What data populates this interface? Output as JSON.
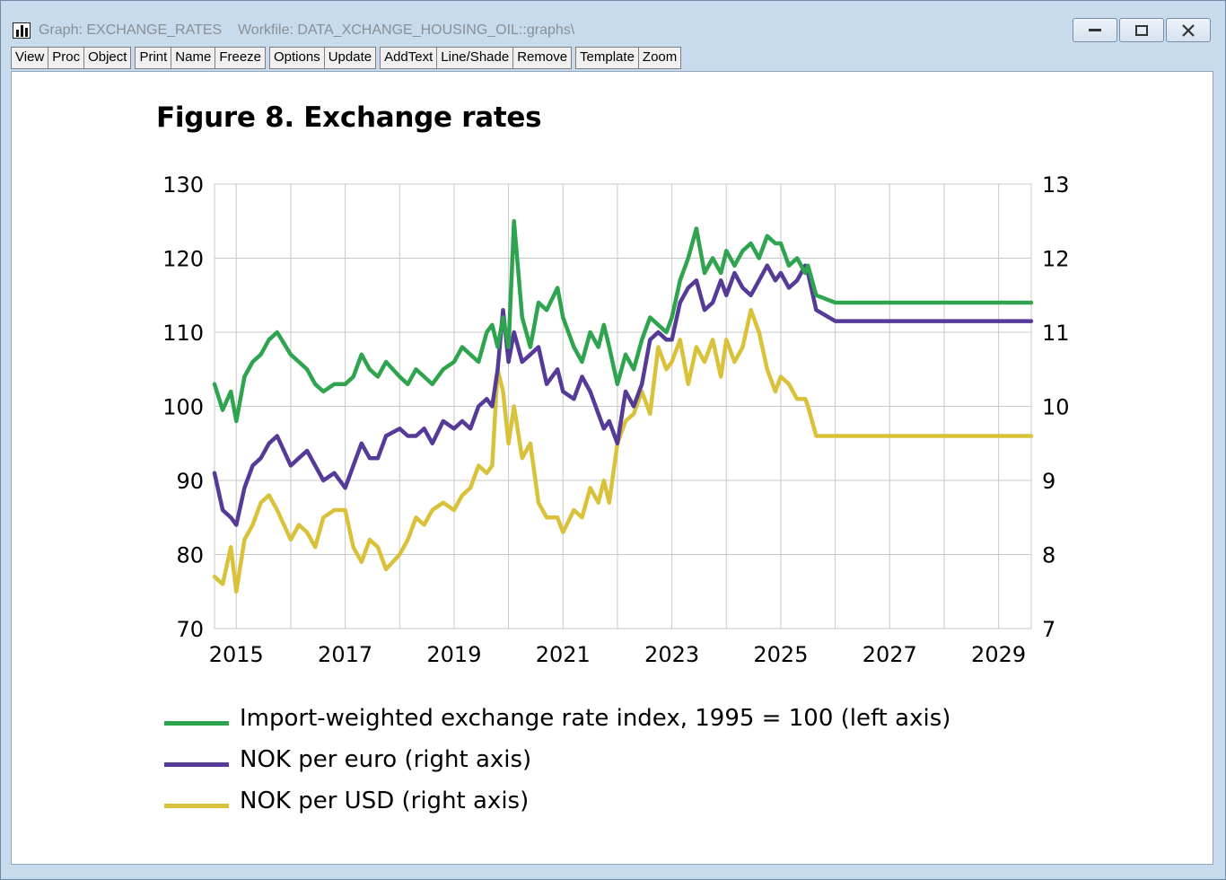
{
  "window": {
    "title": "Graph: EXCHANGE_RATES    Workfile: DATA_XCHANGE_HOUSING_OIL::graphs\\"
  },
  "toolbar": {
    "groups": [
      [
        "View",
        "Proc",
        "Object"
      ],
      [
        "Print",
        "Name",
        "Freeze"
      ],
      [
        "Options",
        "Update"
      ],
      [
        "AddText",
        "Line/Shade",
        "Remove"
      ],
      [
        "Template",
        "Zoom"
      ]
    ]
  },
  "figure": {
    "title": "Figure 8. Exchange rates"
  },
  "colors": {
    "green": "#2ea44f",
    "purple": "#553b97",
    "yellow": "#d9c23a",
    "grid": "#c8c8c8"
  },
  "chart_data": {
    "type": "line",
    "title": "Figure 8. Exchange rates",
    "xlabel": "",
    "ylabel": "",
    "xlim": [
      2014.6,
      2029.6
    ],
    "x_ticks": [
      "2015",
      "2017",
      "2019",
      "2021",
      "2023",
      "2025",
      "2027",
      "2029"
    ],
    "x_tick_values": [
      2015,
      2017,
      2019,
      2021,
      2023,
      2025,
      2027,
      2029
    ],
    "y_left": {
      "lim": [
        70,
        130
      ],
      "ticks": [
        "130",
        "120",
        "110",
        "100",
        "90",
        "80",
        "70"
      ]
    },
    "y_right": {
      "lim": [
        7,
        13
      ],
      "ticks": [
        "13",
        "12",
        "11",
        "10",
        "9",
        "8",
        "7"
      ]
    },
    "grid": true,
    "legend_position": "bottom",
    "series": [
      {
        "name": "Import-weighted exchange rate index, 1995 = 100 (left axis)",
        "axis": "left",
        "color": "#2ea44f",
        "x": [
          2014.6,
          2014.75,
          2014.9,
          2015.0,
          2015.15,
          2015.3,
          2015.45,
          2015.6,
          2015.75,
          2016.0,
          2016.15,
          2016.3,
          2016.45,
          2016.6,
          2016.8,
          2017.0,
          2017.15,
          2017.3,
          2017.45,
          2017.6,
          2017.75,
          2018.0,
          2018.15,
          2018.3,
          2018.45,
          2018.6,
          2018.8,
          2019.0,
          2019.15,
          2019.3,
          2019.45,
          2019.6,
          2019.7,
          2019.8,
          2019.9,
          2020.0,
          2020.1,
          2020.25,
          2020.4,
          2020.55,
          2020.7,
          2020.9,
          2021.0,
          2021.2,
          2021.35,
          2021.5,
          2021.65,
          2021.75,
          2021.85,
          2022.0,
          2022.15,
          2022.3,
          2022.45,
          2022.6,
          2022.75,
          2022.9,
          2023.0,
          2023.15,
          2023.3,
          2023.45,
          2023.6,
          2023.75,
          2023.9,
          2024.0,
          2024.15,
          2024.3,
          2024.45,
          2024.6,
          2024.75,
          2024.9,
          2025.0,
          2025.15,
          2025.3,
          2025.45,
          2025.5,
          2025.65,
          2026.0,
          2027.0,
          2028.0,
          2029.0,
          2029.6
        ],
        "y": [
          103,
          99.5,
          102,
          98,
          104,
          106,
          107,
          109,
          110,
          107,
          106,
          105,
          103,
          102,
          103,
          103,
          104,
          107,
          105,
          104,
          106,
          104,
          103,
          105,
          104,
          103,
          105,
          106,
          108,
          107,
          106,
          110,
          111,
          108,
          112,
          108,
          125,
          112,
          108,
          114,
          113,
          116,
          112,
          108,
          106,
          110,
          108,
          111,
          108,
          103,
          107,
          105,
          109,
          112,
          111,
          110,
          112,
          117,
          120,
          124,
          118,
          120,
          118,
          121,
          119,
          121,
          122,
          120,
          123,
          122,
          122,
          119,
          120,
          118,
          119,
          115,
          114,
          114,
          114,
          114,
          114
        ]
      },
      {
        "name": "NOK per euro (right axis)",
        "axis": "right",
        "color": "#553b97",
        "x": [
          2014.6,
          2014.75,
          2014.9,
          2015.0,
          2015.15,
          2015.3,
          2015.45,
          2015.6,
          2015.75,
          2016.0,
          2016.15,
          2016.3,
          2016.45,
          2016.6,
          2016.8,
          2017.0,
          2017.15,
          2017.3,
          2017.45,
          2017.6,
          2017.75,
          2018.0,
          2018.15,
          2018.3,
          2018.45,
          2018.6,
          2018.8,
          2019.0,
          2019.15,
          2019.3,
          2019.45,
          2019.6,
          2019.7,
          2019.8,
          2019.9,
          2020.0,
          2020.1,
          2020.25,
          2020.4,
          2020.55,
          2020.7,
          2020.9,
          2021.0,
          2021.2,
          2021.35,
          2021.5,
          2021.65,
          2021.75,
          2021.85,
          2022.0,
          2022.15,
          2022.3,
          2022.45,
          2022.6,
          2022.75,
          2022.9,
          2023.0,
          2023.15,
          2023.3,
          2023.45,
          2023.6,
          2023.75,
          2023.9,
          2024.0,
          2024.15,
          2024.3,
          2024.45,
          2024.6,
          2024.75,
          2024.9,
          2025.0,
          2025.15,
          2025.3,
          2025.45,
          2025.5,
          2025.65,
          2026.0,
          2027.0,
          2028.0,
          2029.0,
          2029.6
        ],
        "y": [
          9.1,
          8.6,
          8.5,
          8.4,
          8.9,
          9.2,
          9.3,
          9.5,
          9.6,
          9.2,
          9.3,
          9.4,
          9.2,
          9.0,
          9.1,
          8.9,
          9.2,
          9.5,
          9.3,
          9.3,
          9.6,
          9.7,
          9.6,
          9.6,
          9.7,
          9.5,
          9.8,
          9.7,
          9.8,
          9.7,
          10.0,
          10.1,
          10.0,
          10.5,
          11.3,
          10.6,
          11.0,
          10.6,
          10.7,
          10.8,
          10.3,
          10.5,
          10.2,
          10.1,
          10.4,
          10.2,
          9.9,
          9.7,
          9.8,
          9.5,
          10.2,
          10.0,
          10.3,
          10.9,
          11.0,
          10.9,
          10.9,
          11.4,
          11.6,
          11.7,
          11.3,
          11.4,
          11.7,
          11.5,
          11.8,
          11.6,
          11.5,
          11.7,
          11.9,
          11.7,
          11.8,
          11.6,
          11.7,
          11.9,
          11.8,
          11.3,
          11.15,
          11.15,
          11.15,
          11.15,
          11.15
        ]
      },
      {
        "name": "NOK per USD (right axis)",
        "axis": "right",
        "color": "#d9c23a",
        "x": [
          2014.6,
          2014.75,
          2014.9,
          2015.0,
          2015.15,
          2015.3,
          2015.45,
          2015.6,
          2015.75,
          2016.0,
          2016.15,
          2016.3,
          2016.45,
          2016.6,
          2016.8,
          2017.0,
          2017.15,
          2017.3,
          2017.45,
          2017.6,
          2017.75,
          2018.0,
          2018.15,
          2018.3,
          2018.45,
          2018.6,
          2018.8,
          2019.0,
          2019.15,
          2019.3,
          2019.45,
          2019.6,
          2019.7,
          2019.8,
          2019.9,
          2020.0,
          2020.1,
          2020.25,
          2020.4,
          2020.55,
          2020.7,
          2020.9,
          2021.0,
          2021.2,
          2021.35,
          2021.5,
          2021.65,
          2021.75,
          2021.85,
          2022.0,
          2022.15,
          2022.3,
          2022.45,
          2022.6,
          2022.75,
          2022.9,
          2023.0,
          2023.15,
          2023.3,
          2023.45,
          2023.6,
          2023.75,
          2023.9,
          2024.0,
          2024.15,
          2024.3,
          2024.45,
          2024.6,
          2024.75,
          2024.9,
          2025.0,
          2025.15,
          2025.3,
          2025.45,
          2025.5,
          2025.65,
          2026.0,
          2027.0,
          2028.0,
          2029.0,
          2029.6
        ],
        "y": [
          7.7,
          7.6,
          8.1,
          7.5,
          8.2,
          8.4,
          8.7,
          8.8,
          8.6,
          8.2,
          8.4,
          8.3,
          8.1,
          8.5,
          8.6,
          8.6,
          8.1,
          7.9,
          8.2,
          8.1,
          7.8,
          8.0,
          8.2,
          8.5,
          8.4,
          8.6,
          8.7,
          8.6,
          8.8,
          8.9,
          9.2,
          9.1,
          9.2,
          10.5,
          10.2,
          9.5,
          10.0,
          9.3,
          9.5,
          8.7,
          8.5,
          8.5,
          8.3,
          8.6,
          8.5,
          8.9,
          8.7,
          9.0,
          8.7,
          9.5,
          9.8,
          9.9,
          10.2,
          9.9,
          10.8,
          10.5,
          10.6,
          10.9,
          10.3,
          10.8,
          10.6,
          10.9,
          10.4,
          10.9,
          10.6,
          10.8,
          11.3,
          11.0,
          10.5,
          10.2,
          10.4,
          10.3,
          10.1,
          10.1,
          10.0,
          9.6,
          9.6,
          9.6,
          9.6,
          9.6,
          9.6
        ]
      }
    ]
  }
}
